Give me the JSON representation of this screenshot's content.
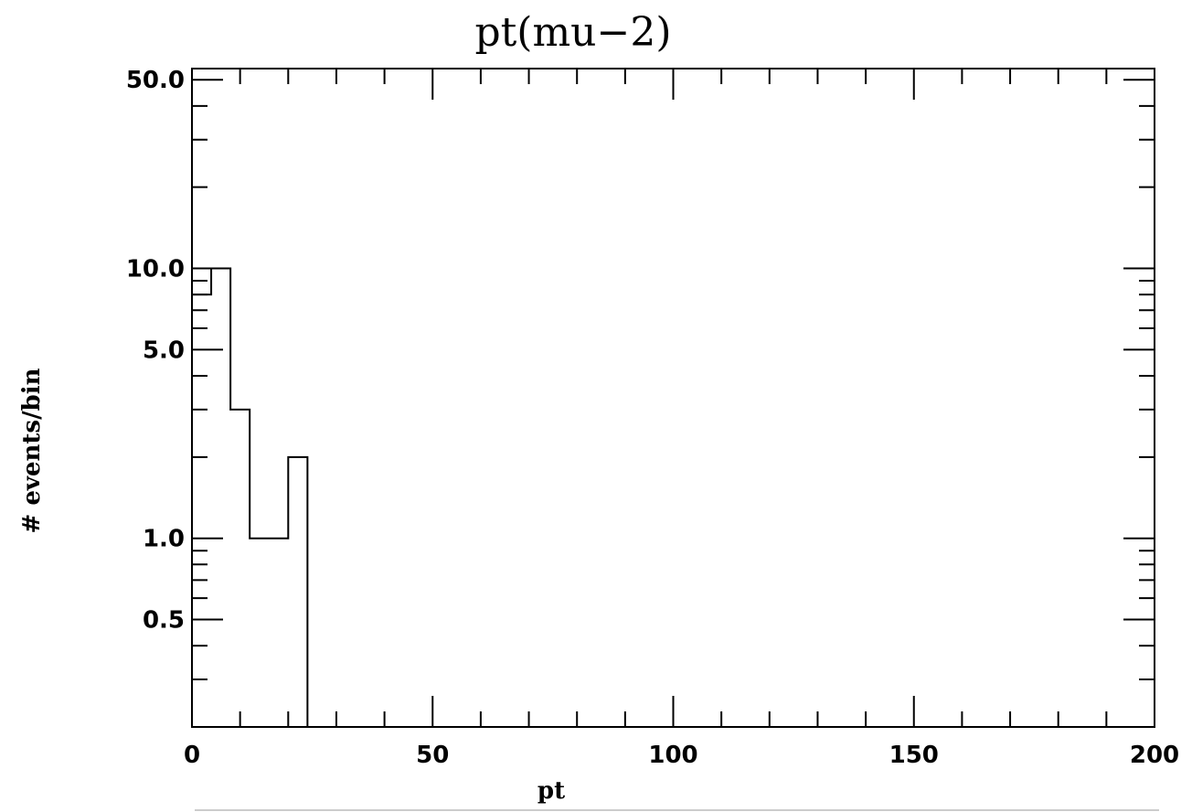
{
  "chart_data": {
    "type": "histogram",
    "title": "pt(mu−2)",
    "xlabel": "pt",
    "ylabel": "# events/bin",
    "xlim": [
      0,
      200
    ],
    "ylim": [
      0.2,
      55
    ],
    "yscale": "log",
    "x_ticks": [
      {
        "value": 0,
        "label": "0"
      },
      {
        "value": 50,
        "label": "50"
      },
      {
        "value": 100,
        "label": "100"
      },
      {
        "value": 150,
        "label": "150"
      },
      {
        "value": 200,
        "label": "200"
      }
    ],
    "y_ticks": [
      {
        "value": 0.5,
        "label": "0.5"
      },
      {
        "value": 1,
        "label": "1.0"
      },
      {
        "value": 5,
        "label": "5.0"
      },
      {
        "value": 10,
        "label": "10.0"
      },
      {
        "value": 50,
        "label": "50.0"
      }
    ],
    "bin_width": 4,
    "bins": [
      {
        "x_low": 0,
        "x_high": 4,
        "count": 8
      },
      {
        "x_low": 4,
        "x_high": 8,
        "count": 10
      },
      {
        "x_low": 8,
        "x_high": 12,
        "count": 3
      },
      {
        "x_low": 12,
        "x_high": 16,
        "count": 1
      },
      {
        "x_low": 16,
        "x_high": 20,
        "count": 1
      },
      {
        "x_low": 20,
        "x_high": 24,
        "count": 2
      }
    ]
  }
}
